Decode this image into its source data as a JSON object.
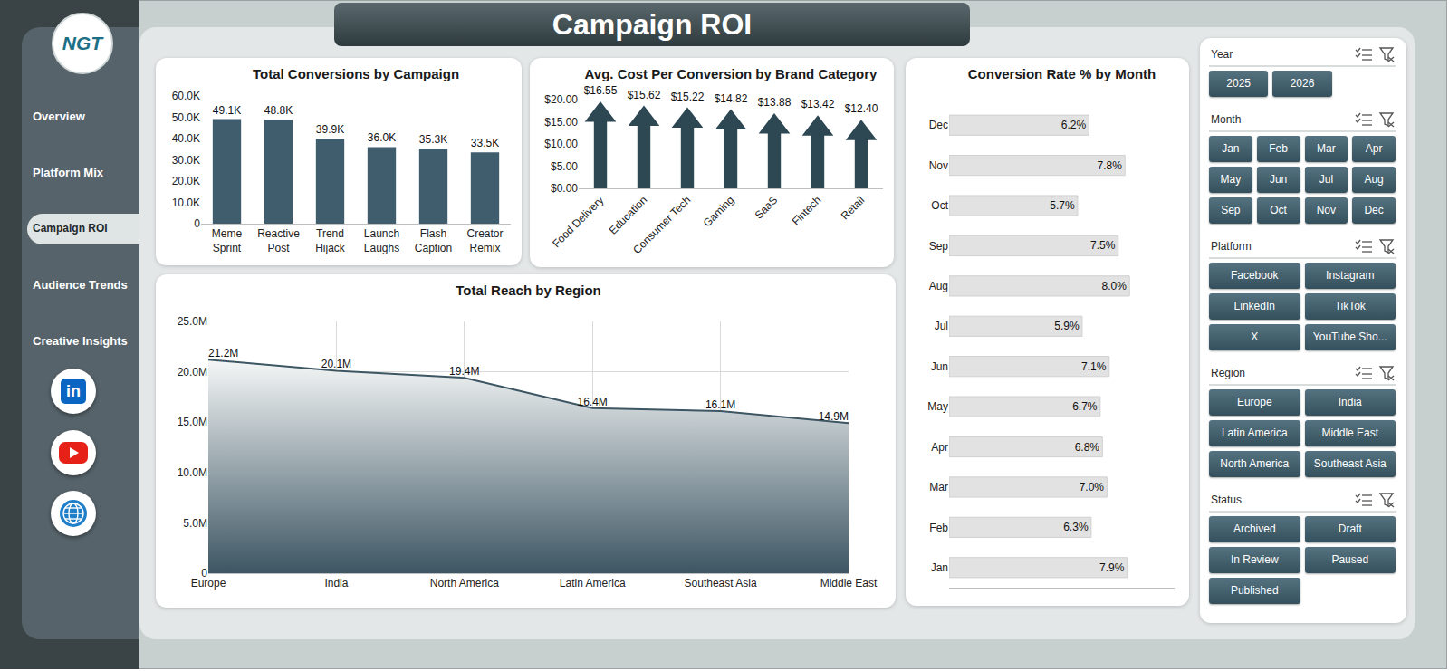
{
  "header": {
    "title": "Campaign ROI",
    "logo": "NGT"
  },
  "nav": {
    "items": [
      "Overview",
      "Platform Mix",
      "Campaign ROI",
      "Audience Trends",
      "Creative Insights"
    ],
    "active": "Campaign ROI"
  },
  "social": {
    "linkedin": "in"
  },
  "filters": [
    {
      "title": "Year",
      "options": [
        "2025",
        "2026"
      ]
    },
    {
      "title": "Month",
      "options": [
        "Jan",
        "Feb",
        "Mar",
        "Apr",
        "May",
        "Jun",
        "Jul",
        "Aug",
        "Sep",
        "Oct",
        "Nov",
        "Dec"
      ]
    },
    {
      "title": "Platform",
      "options": [
        "Facebook",
        "Instagram",
        "LinkedIn",
        "TikTok",
        "X",
        "YouTube Sho..."
      ]
    },
    {
      "title": "Region",
      "options": [
        "Europe",
        "India",
        "Latin America",
        "Middle East",
        "North America",
        "Southeast Asia"
      ]
    },
    {
      "title": "Status",
      "options": [
        "Archived",
        "Draft",
        "In Review",
        "Paused",
        "Published"
      ]
    }
  ],
  "chart_data": [
    {
      "type": "bar",
      "title": "Total Conversions by Campaign",
      "categories": [
        "Meme Sprint",
        "Reactive Post",
        "Trend Hijack",
        "Launch Laughs",
        "Flash Caption",
        "Creator Remix"
      ],
      "values": [
        49100,
        48800,
        39900,
        36000,
        35300,
        33500
      ],
      "value_labels": [
        "49.1K",
        "48.8K",
        "39.9K",
        "36.0K",
        "35.3K",
        "33.5K"
      ],
      "data_labels": true,
      "color": "#3f5d6d",
      "grid": false,
      "ylim": [
        0,
        60000
      ],
      "yticks": [
        0,
        {
          "value": 10000,
          "label": "10.0K"
        },
        {
          "value": 20000,
          "label": "20.0K"
        },
        {
          "value": 30000,
          "label": "30.0K"
        },
        {
          "value": 40000,
          "label": "40.0K"
        },
        {
          "value": 50000,
          "label": "50.0K"
        },
        {
          "value": 60000,
          "label": "60.0K"
        }
      ]
    },
    {
      "type": "bar",
      "title": "Avg. Cost Per Conversion by Brand Category",
      "categories": [
        "Food Delivery",
        "Education",
        "Consumer Tech",
        "Gaming",
        "SaaS",
        "Fintech",
        "Retail"
      ],
      "values": [
        16.55,
        15.62,
        15.22,
        14.82,
        13.88,
        13.42,
        12.4
      ],
      "value_labels": [
        "$16.55",
        "$15.62",
        "$15.22",
        "$14.82",
        "$13.88",
        "$13.42",
        "$12.40"
      ],
      "data_labels": true,
      "color": "#2d4753",
      "marker": "arrow",
      "grid": false,
      "ylim": [
        0,
        20
      ],
      "yticks": [
        {
          "value": 0,
          "label": "$0.00"
        },
        {
          "value": 5,
          "label": "$5.00"
        },
        {
          "value": 10,
          "label": "$10.00"
        },
        {
          "value": 15,
          "label": "$15.00"
        },
        {
          "value": 20,
          "label": "$20.00"
        }
      ]
    },
    {
      "type": "area",
      "title": "Total Reach by Region",
      "categories": [
        "Europe",
        "India",
        "North America",
        "Latin America",
        "Southeast Asia",
        "Middle East"
      ],
      "values": [
        21200000,
        20100000,
        19400000,
        16400000,
        16100000,
        14900000
      ],
      "value_labels": [
        "21.2M",
        "20.1M",
        "19.4M",
        "16.4M",
        "16.1M",
        "14.9M"
      ],
      "data_labels": true,
      "color": "#3d5663",
      "grid": true,
      "ylim": [
        0,
        25000000
      ],
      "yticks": [
        0,
        {
          "value": 5000000,
          "label": "5.0M"
        },
        {
          "value": 10000000,
          "label": "10.0M"
        },
        {
          "value": 15000000,
          "label": "15.0M"
        },
        {
          "value": 20000000,
          "label": "20.0M"
        },
        {
          "value": 25000000,
          "label": "25.0M"
        }
      ]
    },
    {
      "type": "bar",
      "orientation": "horizontal",
      "title": "Conversion Rate % by Month",
      "categories": [
        "Jan",
        "Feb",
        "Mar",
        "Apr",
        "May",
        "Jun",
        "Jul",
        "Aug",
        "Sep",
        "Oct",
        "Nov",
        "Dec"
      ],
      "values": [
        7.9,
        6.3,
        7.0,
        6.8,
        6.7,
        7.1,
        5.9,
        8.0,
        7.5,
        5.7,
        7.8,
        6.2
      ],
      "value_labels": [
        "7.9%",
        "6.3%",
        "7.0%",
        "6.8%",
        "6.7%",
        "7.1%",
        "5.9%",
        "8.0%",
        "7.5%",
        "5.7%",
        "7.8%",
        "6.2%"
      ],
      "data_labels": true,
      "color": "#e2e2e2",
      "grid": false,
      "tick_labels": "y",
      "xlim": [
        0,
        10
      ]
    }
  ]
}
